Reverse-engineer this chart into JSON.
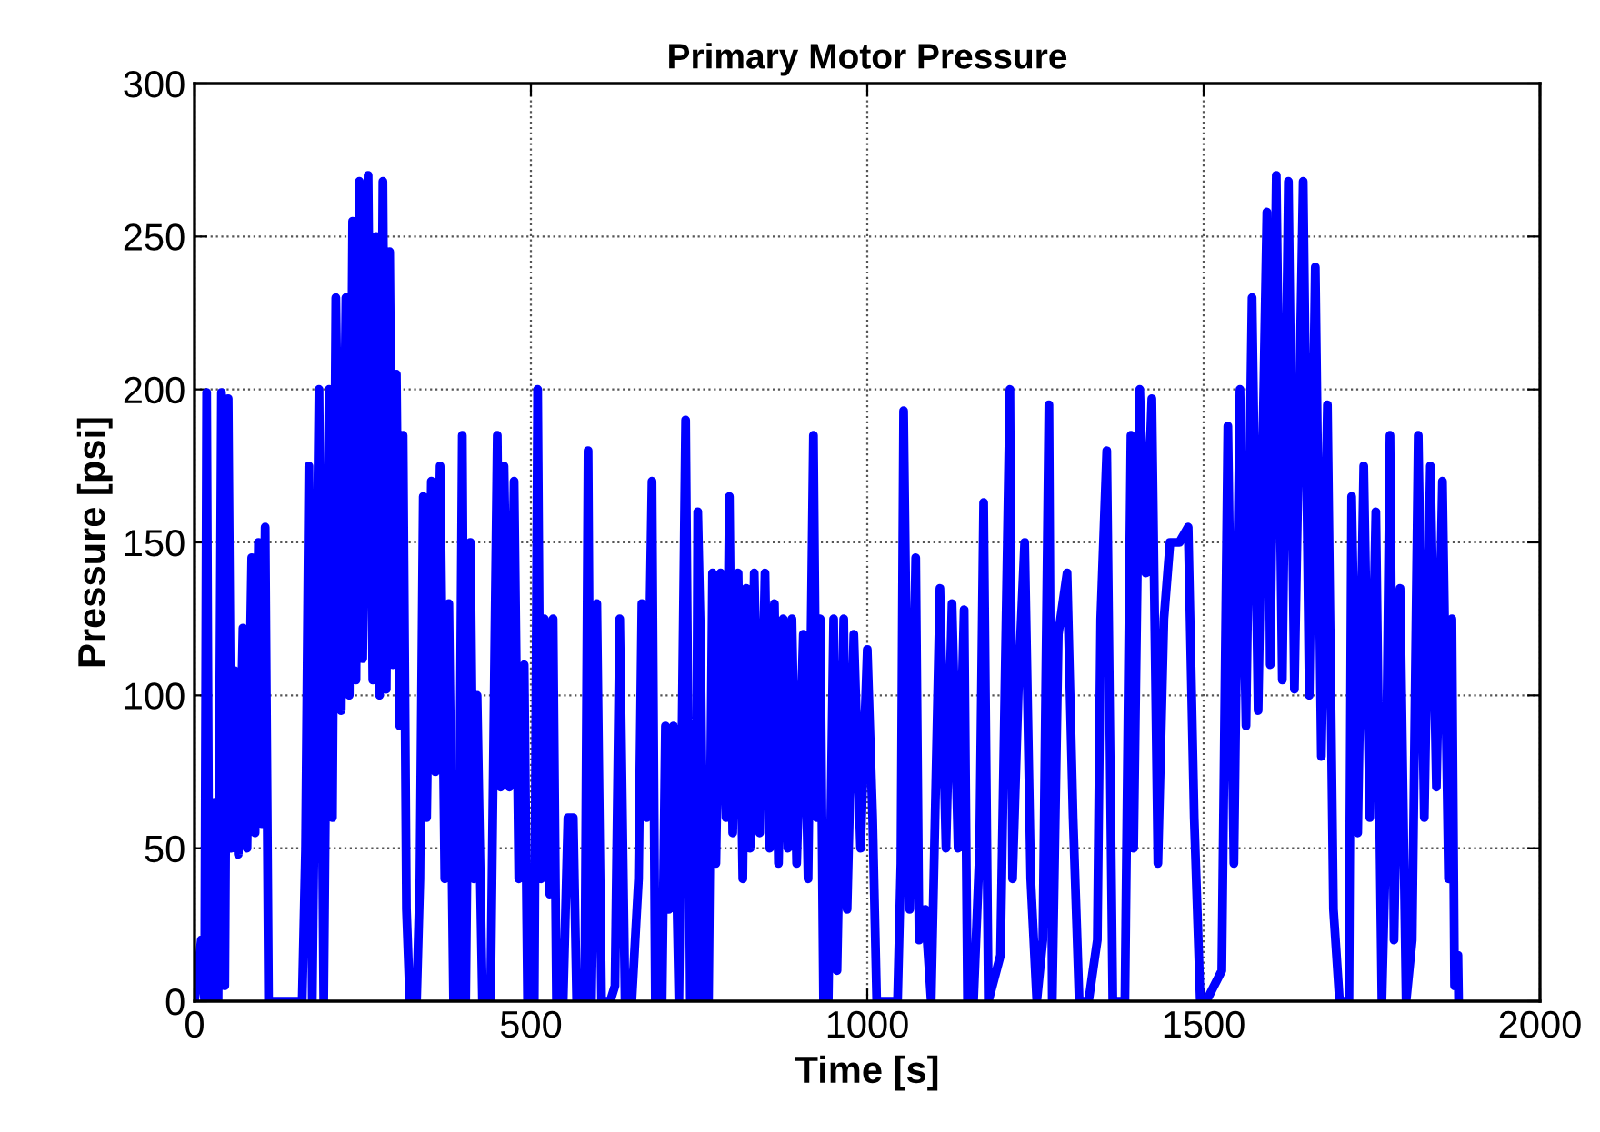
{
  "chart_data": {
    "type": "line",
    "title": "Primary Motor Pressure",
    "xlabel": "Time [s]",
    "ylabel": "Pressure [psi]",
    "xlim": [
      0,
      2000
    ],
    "xticks": [
      0,
      500,
      1000,
      1500,
      2000
    ],
    "ylim": [
      0,
      300
    ],
    "yticks": [
      0,
      50,
      100,
      150,
      200,
      250,
      300
    ],
    "grid": true,
    "legend": false,
    "marker": "none",
    "line_style": "solid",
    "series": [
      {
        "color": "#0000ff",
        "x": [
          0,
          10,
          15,
          18,
          22,
          30,
          35,
          40,
          45,
          50,
          55,
          60,
          65,
          72,
          78,
          85,
          90,
          95,
          100,
          105,
          110,
          115,
          160,
          165,
          170,
          175,
          185,
          192,
          200,
          205,
          210,
          218,
          225,
          230,
          235,
          240,
          245,
          250,
          258,
          265,
          270,
          275,
          280,
          285,
          290,
          295,
          300,
          305,
          310,
          315,
          320,
          330,
          335,
          340,
          345,
          352,
          358,
          365,
          372,
          378,
          385,
          392,
          398,
          403,
          410,
          415,
          420,
          428,
          440,
          450,
          455,
          460,
          468,
          475,
          482,
          490,
          495,
          505,
          510,
          515,
          520,
          528,
          533,
          538,
          548,
          555,
          563,
          568,
          580,
          585,
          590,
          598,
          605,
          618,
          625,
          632,
          640,
          650,
          660,
          665,
          672,
          680,
          685,
          695,
          700,
          705,
          712,
          720,
          730,
          737,
          745,
          748,
          752,
          758,
          764,
          770,
          775,
          782,
          790,
          795,
          800,
          808,
          815,
          820,
          826,
          832,
          840,
          848,
          855,
          862,
          868,
          875,
          882,
          888,
          895,
          905,
          912,
          920,
          925,
          930,
          935,
          942,
          950,
          955,
          965,
          970,
          980,
          990,
          1000,
          1008,
          1014,
          1045,
          1050,
          1054,
          1063,
          1072,
          1077,
          1086,
          1095,
          1108,
          1117,
          1126,
          1135,
          1144,
          1149,
          1158,
          1167,
          1173,
          1180,
          1198,
          1212,
          1216,
          1225,
          1234,
          1243,
          1252,
          1261,
          1270,
          1275,
          1284,
          1297,
          1306,
          1315,
          1329,
          1342,
          1347,
          1356,
          1365,
          1383,
          1392,
          1396,
          1405,
          1414,
          1423,
          1432,
          1441,
          1450,
          1464,
          1477,
          1486,
          1495,
          1504,
          1527,
          1536,
          1545,
          1554,
          1563,
          1572,
          1581,
          1594,
          1599,
          1608,
          1617,
          1626,
          1635,
          1648,
          1657,
          1666,
          1675,
          1684,
          1693,
          1702,
          1716,
          1720,
          1729,
          1738,
          1747,
          1756,
          1765,
          1770,
          1777,
          1783,
          1792,
          1801,
          1810,
          1819,
          1828,
          1837,
          1846,
          1855,
          1864,
          1869,
          1873,
          1878,
          1879
        ],
        "values": [
          0,
          20,
          0,
          199,
          0,
          65,
          0,
          199,
          5,
          197,
          50,
          108,
          48,
          122,
          50,
          145,
          55,
          150,
          58,
          155,
          0,
          0,
          0,
          50,
          175,
          0,
          200,
          0,
          200,
          60,
          230,
          95,
          230,
          100,
          255,
          105,
          268,
          112,
          270,
          105,
          250,
          100,
          268,
          102,
          245,
          110,
          205,
          90,
          185,
          30,
          0,
          0,
          40,
          165,
          60,
          170,
          75,
          175,
          40,
          130,
          0,
          0,
          185,
          0,
          150,
          40,
          100,
          0,
          0,
          185,
          70,
          175,
          70,
          170,
          40,
          110,
          0,
          0,
          200,
          40,
          125,
          35,
          125,
          0,
          0,
          60,
          60,
          0,
          0,
          180,
          0,
          130,
          0,
          0,
          5,
          125,
          0,
          0,
          40,
          130,
          60,
          170,
          0,
          0,
          90,
          30,
          90,
          0,
          190,
          0,
          0,
          160,
          120,
          0,
          0,
          140,
          45,
          140,
          60,
          165,
          55,
          140,
          40,
          135,
          50,
          140,
          55,
          140,
          50,
          130,
          45,
          125,
          50,
          125,
          45,
          120,
          40,
          185,
          60,
          125,
          0,
          0,
          125,
          10,
          125,
          30,
          120,
          50,
          115,
          60,
          0,
          0,
          45,
          193,
          30,
          145,
          20,
          30,
          0,
          135,
          50,
          130,
          50,
          128,
          0,
          0,
          50,
          163,
          0,
          15,
          200,
          40,
          105,
          150,
          40,
          0,
          20,
          195,
          0,
          120,
          140,
          60,
          0,
          0,
          20,
          125,
          180,
          0,
          0,
          185,
          50,
          200,
          140,
          197,
          45,
          125,
          150,
          150,
          155,
          60,
          0,
          0,
          10,
          188,
          45,
          200,
          90,
          230,
          95,
          258,
          110,
          270,
          105,
          268,
          102,
          268,
          100,
          240,
          80,
          195,
          30,
          0,
          0,
          165,
          55,
          175,
          60,
          160,
          0,
          45,
          185,
          20,
          135,
          0,
          20,
          185,
          60,
          175,
          70,
          170,
          40,
          125,
          5,
          15,
          0
        ]
      }
    ]
  }
}
